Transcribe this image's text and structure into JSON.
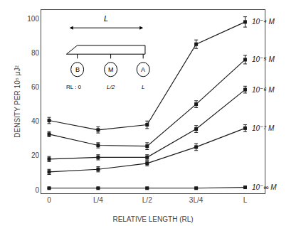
{
  "chart_data": {
    "type": "line",
    "xlabel": "RELATIVE LENGTH (RL)",
    "ylabel": "DENSITY PER 10⁵ µJ²",
    "x": [
      0,
      0.25,
      0.5,
      0.75,
      1.0
    ],
    "xlim": [
      -0.04,
      1.1
    ],
    "xticks": [
      0,
      {
        "value": 0.25,
        "label": "L/4"
      },
      {
        "value": 0.5,
        "label": "L/2"
      },
      {
        "value": 0.75,
        "label": "3L/4"
      },
      {
        "value": 1.0,
        "label": "L"
      }
    ],
    "ylim": [
      -2,
      105
    ],
    "yticks": [
      0,
      20,
      40,
      60,
      80,
      100
    ],
    "grid": false,
    "color": "#1a1a1a",
    "marker": "square",
    "line_style": "solid",
    "series": [
      {
        "name": "10⁻⁴ M",
        "values": [
          40.5,
          35.0,
          38.0,
          85.0,
          98.0
        ],
        "errors": [
          1.8,
          1.8,
          2.2,
          2.5,
          3.0
        ]
      },
      {
        "name": "10⁻⁵ M",
        "values": [
          32.5,
          26.0,
          25.5,
          50.0,
          76.0
        ],
        "errors": [
          1.5,
          1.5,
          2.0,
          2.0,
          2.5
        ]
      },
      {
        "name": "10⁻⁶ M",
        "values": [
          18.0,
          19.0,
          19.0,
          35.5,
          58.5
        ],
        "errors": [
          1.5,
          1.5,
          1.5,
          2.0,
          2.0
        ]
      },
      {
        "name": "10⁻⁷ M",
        "values": [
          10.5,
          12.0,
          15.5,
          25.0,
          36.0
        ],
        "errors": [
          1.5,
          1.5,
          1.5,
          2.0,
          2.0
        ]
      },
      {
        "name": "10⁻∞ M",
        "values": [
          1.0,
          1.0,
          1.0,
          1.0,
          1.5
        ],
        "errors": [
          0.3,
          0.3,
          0.3,
          0.3,
          0.3
        ]
      }
    ],
    "annotations": [
      "L",
      "B",
      "M",
      "A",
      "RL : 0",
      "L/2",
      "L"
    ]
  }
}
